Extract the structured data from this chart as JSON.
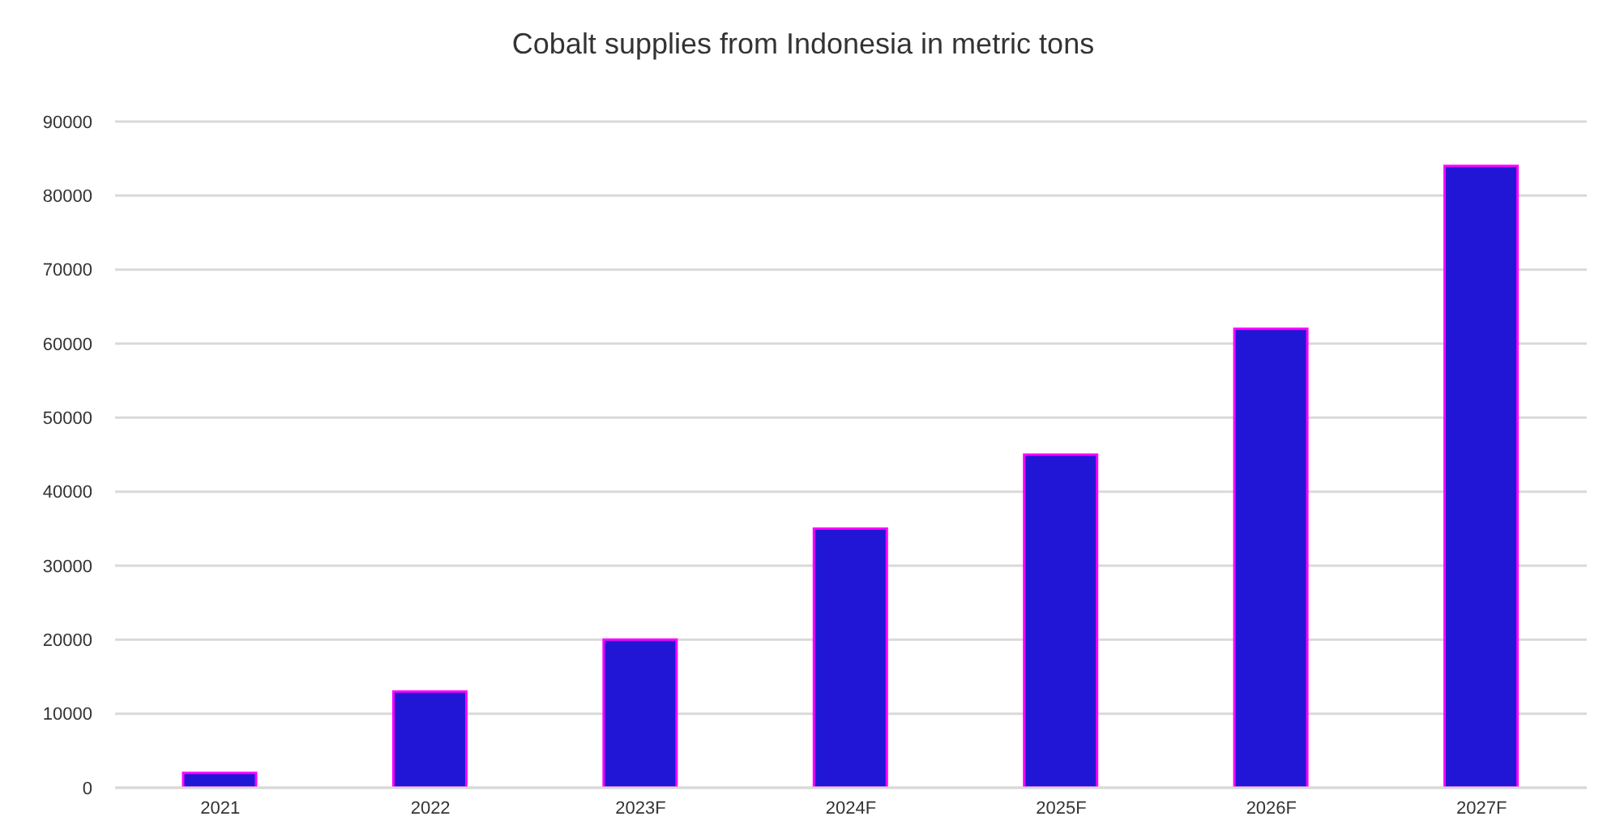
{
  "chart_data": {
    "type": "bar",
    "title": "Cobalt supplies from Indonesia in metric tons",
    "categories": [
      "2021",
      "2022",
      "2023F",
      "2024F",
      "2025F",
      "2026F",
      "2027F"
    ],
    "values": [
      2000,
      13000,
      20000,
      35000,
      45000,
      62000,
      84000
    ],
    "color": "#2116d6",
    "ylim": [
      0,
      90000
    ],
    "yticks": [
      0,
      10000,
      20000,
      30000,
      40000,
      50000,
      60000,
      70000,
      80000,
      90000
    ],
    "grid": "y"
  }
}
